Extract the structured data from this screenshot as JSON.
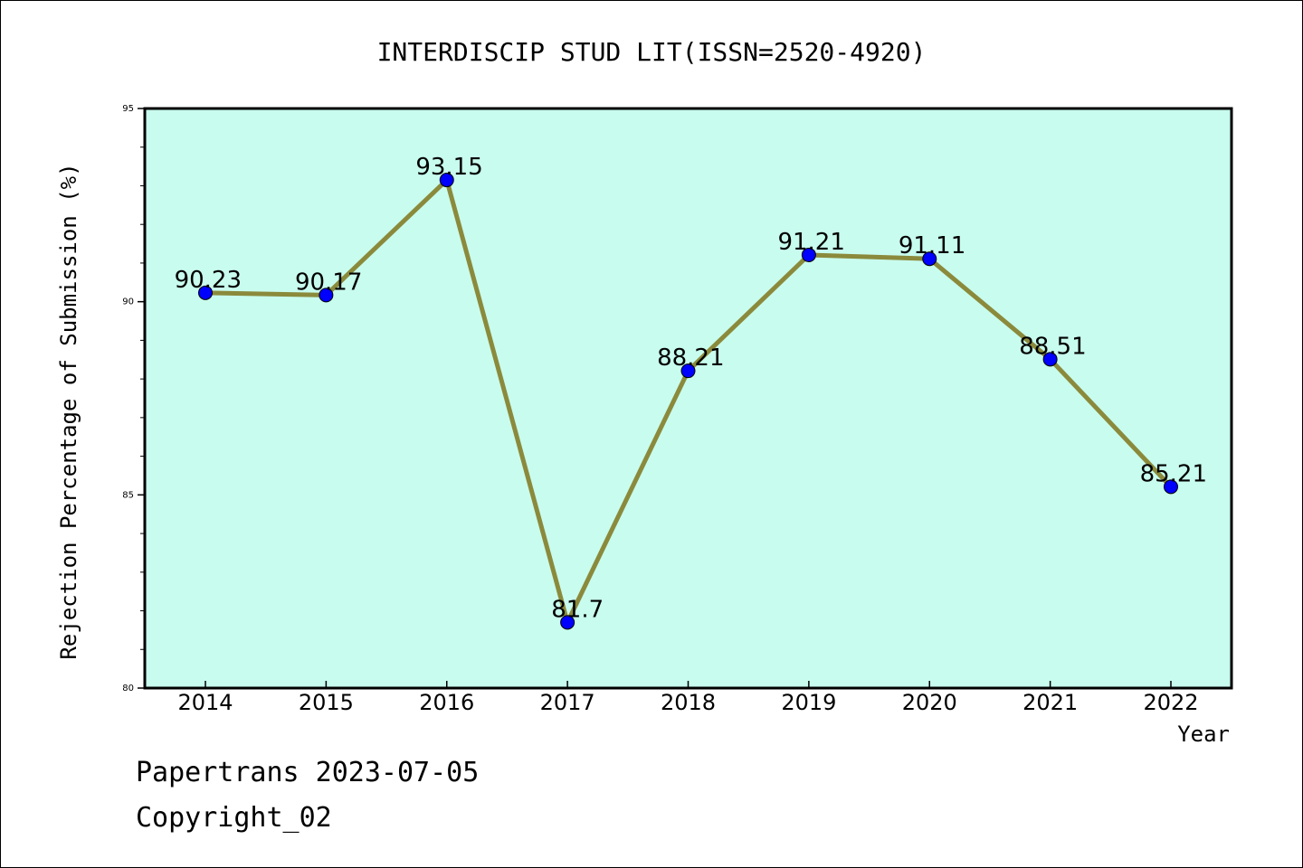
{
  "chart_data": {
    "type": "line",
    "title": "INTERDISCIP STUD LIT(ISSN=2520-4920)",
    "xlabel": "Year",
    "ylabel": "Rejection Percentage of Submission (%)",
    "categories": [
      "2014",
      "2015",
      "2016",
      "2017",
      "2018",
      "2019",
      "2020",
      "2021",
      "2022"
    ],
    "series": [
      {
        "values": [
          90.23,
          90.17,
          93.15,
          81.7,
          88.21,
          91.21,
          91.11,
          88.51,
          85.21
        ],
        "data_labels": [
          "90.23",
          "90.17",
          "93.15",
          "81.7",
          "88.21",
          "91.21",
          "91.11",
          "88.51",
          "85.21"
        ]
      }
    ],
    "ylim": [
      80,
      95
    ],
    "y_ticks": [
      "80",
      "85",
      "90",
      "95"
    ],
    "grid": false,
    "colors": {
      "plot_background": "#c8fcee",
      "line": "#8b8a3c",
      "marker": "#0000ff"
    }
  },
  "footer": {
    "line1": "Papertrans 2023-07-05",
    "line2": "Copyright_02"
  }
}
